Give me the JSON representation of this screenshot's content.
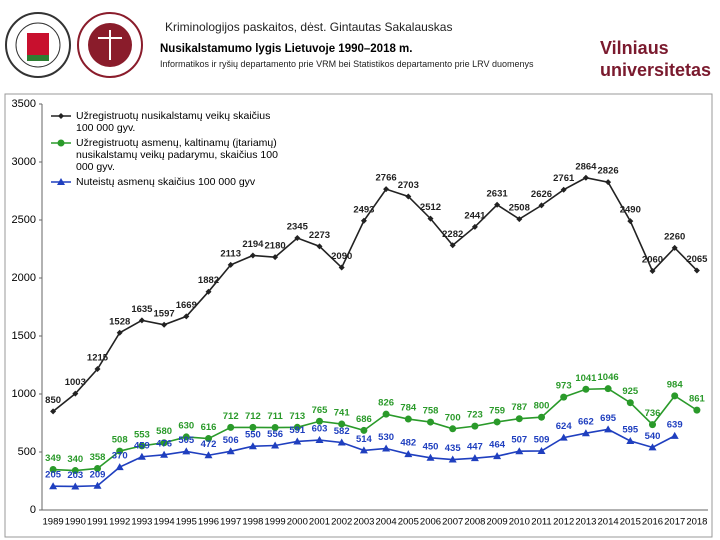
{
  "header": {
    "course": "Kriminologijos paskaitos, dėst. Gintautas Sakalauskas",
    "title": "Nusikalstamumo lygis Lietuvoje 1990–2018 m.",
    "source": "Informatikos ir ryšių departamento prie VRM bei Statistikos departamento prie LRV duomenys",
    "logo_line1": "Vilniaus",
    "logo_line2": "universitetas"
  },
  "chart_data": {
    "type": "line",
    "categories": [
      "1989",
      "1990",
      "1991",
      "1992",
      "1993",
      "1994",
      "1995",
      "1996",
      "1997",
      "1998",
      "1999",
      "2000",
      "2001",
      "2002",
      "2003",
      "2004",
      "2005",
      "2006",
      "2007",
      "2008",
      "2009",
      "2010",
      "2011",
      "2012",
      "2013",
      "2014",
      "2015",
      "2016",
      "2017",
      "2018"
    ],
    "series": [
      {
        "name": "Užregistruotų nusikalstamų veikų skaičius 100 000 gyv.",
        "color": "#222222",
        "marker": "diamond",
        "values": [
          850,
          1003,
          1215,
          1528,
          1635,
          1597,
          1669,
          1882,
          2113,
          2194,
          2180,
          2345,
          2273,
          2090,
          2493,
          2766,
          2703,
          2512,
          2282,
          2441,
          2631,
          2508,
          2626,
          2761,
          2864,
          2826,
          2490,
          2060,
          2260,
          2065
        ]
      },
      {
        "name": "Užregistruotų asmenų, kaltinamų (įtariamų) nusikalstamų veikų padarymu, skaičius 100 000 gyv.",
        "color": "#2a9a2a",
        "marker": "circle",
        "values": [
          349,
          340,
          358,
          508,
          553,
          580,
          630,
          616,
          712,
          712,
          711,
          713,
          765,
          741,
          686,
          826,
          784,
          758,
          700,
          723,
          759,
          787,
          800,
          973,
          1041,
          1046,
          925,
          736,
          984,
          861
        ]
      },
      {
        "name": "Nuteistų asmenų skaičius 100 000 gyv",
        "color": "#1f3fbf",
        "marker": "triangle",
        "values": [
          205,
          203,
          209,
          370,
          459,
          476,
          505,
          472,
          506,
          550,
          556,
          591,
          603,
          582,
          514,
          530,
          482,
          450,
          435,
          447,
          464,
          507,
          509,
          624,
          662,
          695,
          595,
          540,
          639,
          null
        ]
      }
    ],
    "ylim": [
      0,
      3500
    ],
    "yticks": [
      0,
      500,
      1000,
      1500,
      2000,
      2500,
      3000,
      3500
    ],
    "grid": false,
    "legend": "upper left"
  }
}
